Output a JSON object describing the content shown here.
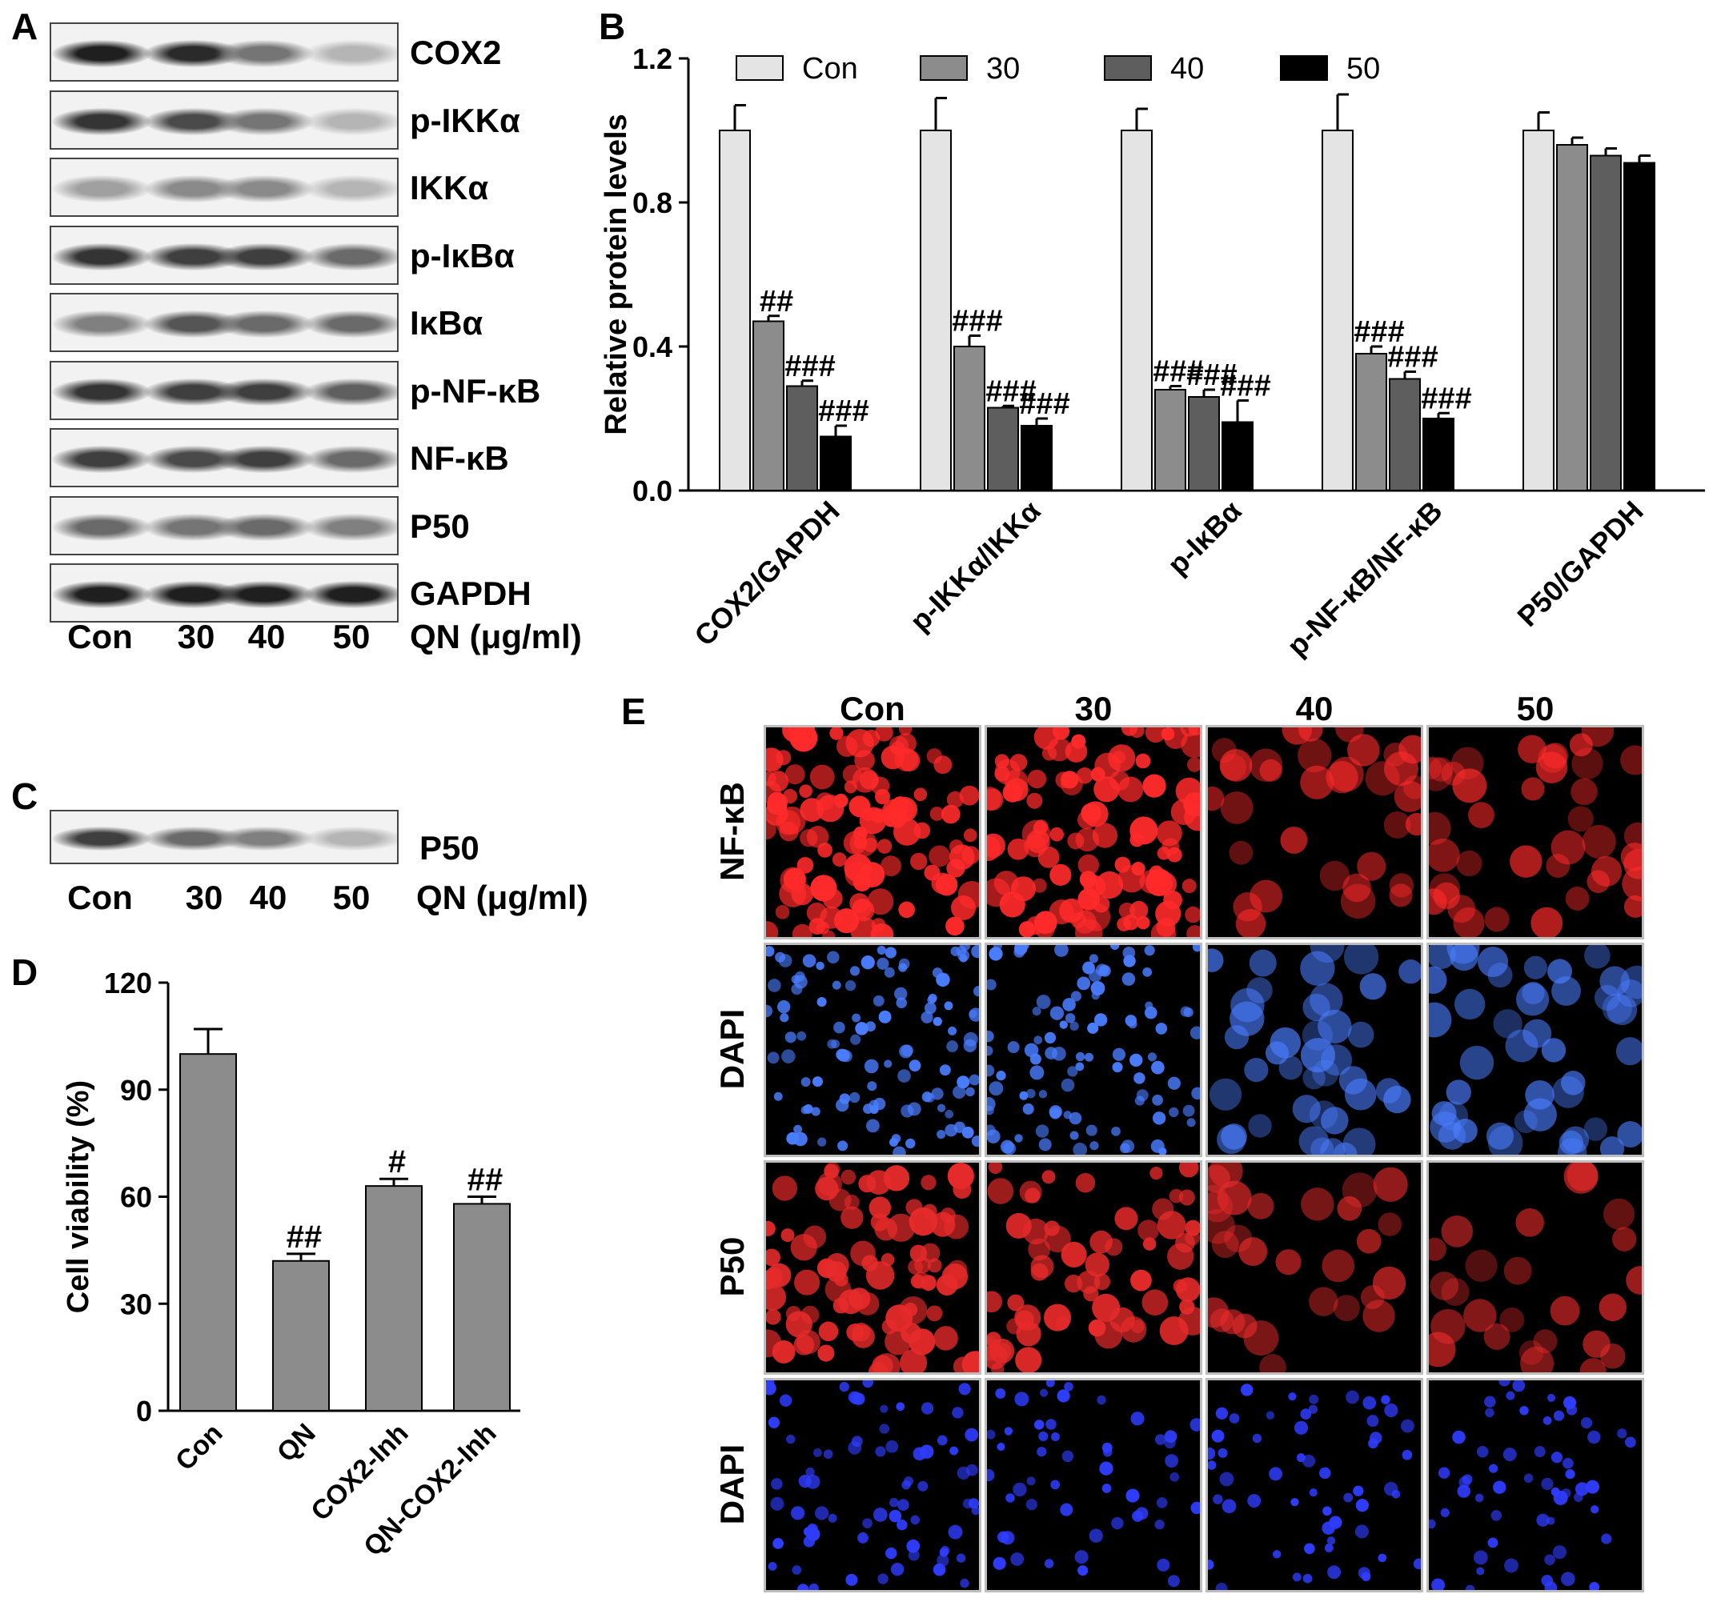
{
  "panels": {
    "A": "A",
    "B": "B",
    "C": "C",
    "D": "D",
    "E": "E"
  },
  "blot_a": {
    "rows": [
      {
        "label": "COX2",
        "intensity": [
          0.95,
          0.9,
          0.55,
          0.25
        ]
      },
      {
        "label": "p-IKKα",
        "intensity": [
          0.85,
          0.75,
          0.55,
          0.25
        ]
      },
      {
        "label": "IKKα",
        "intensity": [
          0.35,
          0.45,
          0.45,
          0.25
        ]
      },
      {
        "label": "p-IκBα",
        "intensity": [
          0.85,
          0.8,
          0.8,
          0.6
        ]
      },
      {
        "label": "IκBα",
        "intensity": [
          0.5,
          0.7,
          0.6,
          0.6
        ]
      },
      {
        "label": "p-NF-κB",
        "intensity": [
          0.85,
          0.8,
          0.8,
          0.65
        ]
      },
      {
        "label": "NF-κB",
        "intensity": [
          0.8,
          0.75,
          0.8,
          0.6
        ]
      },
      {
        "label": "P50",
        "intensity": [
          0.6,
          0.55,
          0.6,
          0.5
        ]
      },
      {
        "label": "GAPDH",
        "intensity": [
          0.95,
          0.95,
          0.95,
          0.95
        ]
      }
    ],
    "lanes": [
      "Con",
      "30",
      "40",
      "50"
    ],
    "treatment_label": "QN (μg/ml)"
  },
  "blot_c": {
    "label": "P50",
    "intensity": [
      0.8,
      0.6,
      0.5,
      0.25
    ],
    "lanes": [
      "Con",
      "30",
      "40",
      "50"
    ],
    "treatment_label": "QN (μg/ml)"
  },
  "chart_data": [
    {
      "panel": "B",
      "type": "bar",
      "ylabel": "Relative protein levels",
      "ylim": [
        0,
        1.2
      ],
      "yticks": [
        "0.0",
        "0.4",
        "0.8",
        "1.2"
      ],
      "categories": [
        "COX2/GAPDH",
        "p-IKKα/IKKα",
        "p-IκBα",
        "p-NF-κB/NF-κB",
        "P50/GAPDH"
      ],
      "series": [
        {
          "name": "Con",
          "color": "#e4e4e4",
          "values": [
            1.0,
            1.0,
            1.0,
            1.0,
            1.0
          ],
          "errors": [
            0.07,
            0.09,
            0.06,
            0.1,
            0.05
          ],
          "annotations": [
            "",
            "",
            "",
            "",
            ""
          ]
        },
        {
          "name": "30",
          "color": "#8c8c8c",
          "values": [
            0.47,
            0.4,
            0.28,
            0.38,
            0.96
          ],
          "errors": [
            0.015,
            0.03,
            0.01,
            0.02,
            0.02
          ],
          "annotations": [
            "##",
            "###",
            "###",
            "###",
            ""
          ]
        },
        {
          "name": "40",
          "color": "#5e5e5e",
          "values": [
            0.29,
            0.23,
            0.26,
            0.31,
            0.93
          ],
          "errors": [
            0.015,
            0.005,
            0.02,
            0.02,
            0.02
          ],
          "annotations": [
            "###",
            "###",
            "###",
            "###",
            ""
          ]
        },
        {
          "name": "50",
          "color": "#000000",
          "values": [
            0.15,
            0.18,
            0.19,
            0.2,
            0.91
          ],
          "errors": [
            0.03,
            0.02,
            0.06,
            0.015,
            0.02
          ],
          "annotations": [
            "###",
            "###",
            "###",
            "###",
            ""
          ]
        }
      ],
      "legend": "top"
    },
    {
      "panel": "D",
      "type": "bar",
      "ylabel": "Cell viability (%)",
      "ylim": [
        0,
        120
      ],
      "yticks": [
        "0",
        "30",
        "60",
        "90",
        "120"
      ],
      "categories": [
        "Con",
        "QN",
        "COX2-Inh",
        "QN-COX2-Inh"
      ],
      "values": [
        100,
        42,
        63,
        58
      ],
      "errors": [
        7,
        2,
        2,
        2
      ],
      "annotations": [
        "",
        "##",
        "#",
        "##"
      ],
      "color": "#8c8c8c"
    }
  ],
  "panel_e": {
    "columns": [
      "Con",
      "30",
      "40",
      "50"
    ],
    "rows": [
      {
        "label": "NF-κB",
        "color": "#ff2a2a",
        "density": [
          0.95,
          0.85,
          0.2,
          0.25
        ]
      },
      {
        "label": "DAPI",
        "color": "#4a7dff",
        "density": [
          0.9,
          0.8,
          0.25,
          0.3
        ]
      },
      {
        "label": "P50",
        "color": "#e62a2a",
        "density": [
          0.7,
          0.45,
          0.15,
          0.12
        ]
      },
      {
        "label": "DAPI",
        "color": "#2f3dff",
        "density": [
          0.55,
          0.35,
          0.4,
          0.4
        ]
      }
    ]
  }
}
